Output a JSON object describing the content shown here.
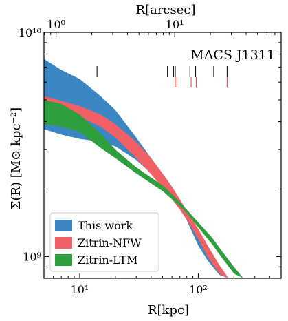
{
  "chart_data": {
    "type": "area",
    "title": "MACS J1311",
    "xlabel": "R[kpc]",
    "ylabel": "Σ(R) [M⊙ kpc⁻²]",
    "top_xlabel": "R[arcsec]",
    "xscale": "log",
    "yscale": "log",
    "xlim": [
      5,
      500
    ],
    "ylim": [
      800000000,
      10000000000
    ],
    "x_ticks": [
      {
        "value": 10,
        "label": "10¹"
      },
      {
        "value": 100,
        "label": "10²"
      }
    ],
    "y_ticks": [
      {
        "value": 1000000000,
        "label": "10⁹"
      },
      {
        "value": 10000000000,
        "label": "10¹⁰"
      }
    ],
    "top_x_ticks": [
      {
        "value": 1,
        "label": "10⁰"
      },
      {
        "value": 10,
        "label": "10¹"
      }
    ],
    "arcsec_per_kpc": 0.158,
    "legend": {
      "position": "bottom-left",
      "entries": [
        {
          "label": "This work",
          "color": "#3b87c4"
        },
        {
          "label": "Zitrin-NFW",
          "color": "#f26065"
        },
        {
          "label": "Zitrin-LTM",
          "color": "#2e9e3e"
        }
      ]
    },
    "series": [
      {
        "name": "This work",
        "color": "#3b87c4",
        "x": [
          5,
          7,
          10,
          15,
          20,
          30,
          40,
          50,
          60,
          70,
          80,
          100,
          120,
          150,
          180
        ],
        "upper": [
          7600000000,
          6800000000,
          6200000000,
          5200000000,
          4500000000,
          3400000000,
          2750000000,
          2270000000,
          1950000000,
          1700000000,
          1470000000,
          1220000000,
          1030000000,
          860000000,
          800000000
        ],
        "lower": [
          3700000000,
          3500000000,
          3350000000,
          3250000000,
          3100000000,
          2700000000,
          2350000000,
          2100000000,
          1880000000,
          1650000000,
          1450000000,
          1120000000,
          960000000,
          830000000,
          800000000
        ]
      },
      {
        "name": "Zitrin-NFW",
        "color": "#f26065",
        "x": [
          5,
          7,
          10,
          15,
          20,
          30,
          40,
          50,
          60,
          70,
          80,
          100,
          120,
          150,
          180
        ],
        "upper": [
          5200000000,
          4950000000,
          4700000000,
          4300000000,
          3900000000,
          3250000000,
          2750000000,
          2350000000,
          2050000000,
          1800000000,
          1600000000,
          1330000000,
          1120000000,
          920000000,
          800000000
        ],
        "lower": [
          4600000000,
          4400000000,
          4200000000,
          3800000000,
          3400000000,
          2750000000,
          2330000000,
          2030000000,
          1800000000,
          1620000000,
          1460000000,
          1200000000,
          1000000000,
          840000000,
          800000000
        ]
      },
      {
        "name": "Zitrin-LTM",
        "color": "#2e9e3e",
        "x": [
          5,
          7,
          10,
          15,
          20,
          30,
          40,
          50,
          60,
          70,
          80,
          100,
          130,
          160,
          200,
          240
        ],
        "upper": [
          5000000000,
          4800000000,
          4300000000,
          3550000000,
          3000000000,
          2500000000,
          2250000000,
          2080000000,
          1900000000,
          1750000000,
          1620000000,
          1420000000,
          1220000000,
          1050000000,
          900000000,
          800000000
        ],
        "lower": [
          3900000000,
          3800000000,
          3600000000,
          3050000000,
          2750000000,
          2350000000,
          2120000000,
          1960000000,
          1800000000,
          1680000000,
          1560000000,
          1350000000,
          1140000000,
          980000000,
          840000000,
          800000000
        ]
      }
    ],
    "markers": {
      "black_x": [
        14,
        55,
        62,
        64,
        85,
        95,
        135,
        175
      ],
      "red_x": [
        64,
        66,
        87,
        96,
        175
      ]
    }
  }
}
